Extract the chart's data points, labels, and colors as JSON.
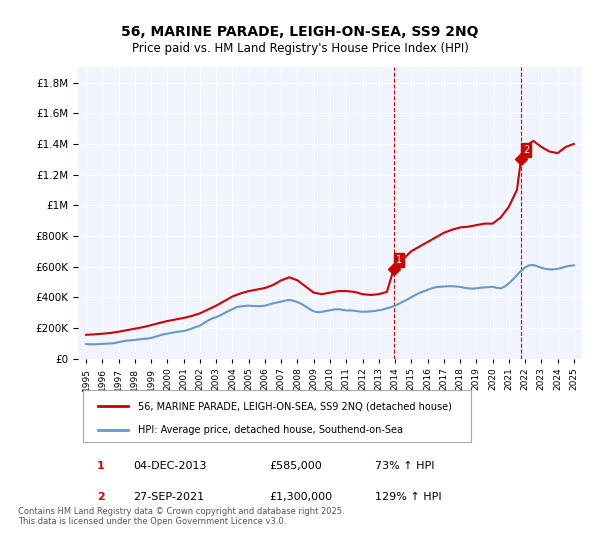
{
  "title": "56, MARINE PARADE, LEIGH-ON-SEA, SS9 2NQ",
  "subtitle": "Price paid vs. HM Land Registry's House Price Index (HPI)",
  "hpi_label": "HPI: Average price, detached house, Southend-on-Sea",
  "property_label": "56, MARINE PARADE, LEIGH-ON-SEA, SS9 2NQ (detached house)",
  "annotation1": {
    "num": "1",
    "date": "04-DEC-2013",
    "price": "£585,000",
    "pct": "73% ↑ HPI",
    "x_year": 2013.92
  },
  "annotation2": {
    "num": "2",
    "date": "27-SEP-2021",
    "price": "£1,300,000",
    "pct": "129% ↑ HPI",
    "x_year": 2021.75
  },
  "footer": "Contains HM Land Registry data © Crown copyright and database right 2025.\nThis data is licensed under the Open Government Licence v3.0.",
  "property_color": "#cc0000",
  "hpi_color": "#6699cc",
  "dashed_line_color": "#cc0000",
  "background_color": "#ffffff",
  "plot_bg_color": "#f0f4ff",
  "ylim": [
    0,
    1900000
  ],
  "xlim_start": 1994.5,
  "xlim_end": 2025.5,
  "hpi_data": {
    "years": [
      1995.0,
      1995.25,
      1995.5,
      1995.75,
      1996.0,
      1996.25,
      1996.5,
      1996.75,
      1997.0,
      1997.25,
      1997.5,
      1997.75,
      1998.0,
      1998.25,
      1998.5,
      1998.75,
      1999.0,
      1999.25,
      1999.5,
      1999.75,
      2000.0,
      2000.25,
      2000.5,
      2000.75,
      2001.0,
      2001.25,
      2001.5,
      2001.75,
      2002.0,
      2002.25,
      2002.5,
      2002.75,
      2003.0,
      2003.25,
      2003.5,
      2003.75,
      2004.0,
      2004.25,
      2004.5,
      2004.75,
      2005.0,
      2005.25,
      2005.5,
      2005.75,
      2006.0,
      2006.25,
      2006.5,
      2006.75,
      2007.0,
      2007.25,
      2007.5,
      2007.75,
      2008.0,
      2008.25,
      2008.5,
      2008.75,
      2009.0,
      2009.25,
      2009.5,
      2009.75,
      2010.0,
      2010.25,
      2010.5,
      2010.75,
      2011.0,
      2011.25,
      2011.5,
      2011.75,
      2012.0,
      2012.25,
      2012.5,
      2012.75,
      2013.0,
      2013.25,
      2013.5,
      2013.75,
      2014.0,
      2014.25,
      2014.5,
      2014.75,
      2015.0,
      2015.25,
      2015.5,
      2015.75,
      2016.0,
      2016.25,
      2016.5,
      2016.75,
      2017.0,
      2017.25,
      2017.5,
      2017.75,
      2018.0,
      2018.25,
      2018.5,
      2018.75,
      2019.0,
      2019.25,
      2019.5,
      2019.75,
      2020.0,
      2020.25,
      2020.5,
      2020.75,
      2021.0,
      2021.25,
      2021.5,
      2021.75,
      2022.0,
      2022.25,
      2022.5,
      2022.75,
      2023.0,
      2023.25,
      2023.5,
      2023.75,
      2024.0,
      2024.25,
      2024.5,
      2024.75,
      2025.0
    ],
    "values": [
      95000,
      93000,
      93000,
      94000,
      96000,
      97000,
      99000,
      101000,
      107000,
      112000,
      117000,
      119000,
      122000,
      125000,
      128000,
      130000,
      135000,
      142000,
      150000,
      158000,
      162000,
      168000,
      173000,
      176000,
      180000,
      187000,
      196000,
      206000,
      215000,
      232000,
      248000,
      262000,
      270000,
      282000,
      296000,
      310000,
      322000,
      335000,
      340000,
      343000,
      345000,
      343000,
      342000,
      342000,
      345000,
      353000,
      360000,
      366000,
      372000,
      378000,
      382000,
      377000,
      368000,
      356000,
      340000,
      322000,
      308000,
      302000,
      305000,
      310000,
      315000,
      320000,
      322000,
      318000,
      314000,
      314000,
      312000,
      308000,
      305000,
      306000,
      308000,
      310000,
      315000,
      320000,
      328000,
      335000,
      345000,
      358000,
      372000,
      385000,
      400000,
      415000,
      428000,
      438000,
      448000,
      458000,
      465000,
      468000,
      470000,
      472000,
      472000,
      470000,
      468000,
      462000,
      458000,
      456000,
      458000,
      462000,
      464000,
      466000,
      468000,
      462000,
      458000,
      470000,
      490000,
      515000,
      545000,
      572000,
      595000,
      608000,
      610000,
      602000,
      592000,
      585000,
      582000,
      582000,
      585000,
      592000,
      600000,
      605000,
      608000
    ]
  },
  "property_data": {
    "years": [
      1995.0,
      1995.5,
      1996.0,
      1996.5,
      1997.0,
      1997.5,
      1998.0,
      1998.5,
      1999.0,
      1999.5,
      2000.0,
      2000.5,
      2001.0,
      2001.5,
      2002.0,
      2002.5,
      2003.0,
      2003.5,
      2004.0,
      2004.5,
      2005.0,
      2005.5,
      2006.0,
      2006.5,
      2007.0,
      2007.5,
      2008.0,
      2008.5,
      2009.0,
      2009.5,
      2010.0,
      2010.5,
      2011.0,
      2011.5,
      2012.0,
      2012.5,
      2013.0,
      2013.5,
      2013.92,
      2014.0,
      2014.5,
      2015.0,
      2015.5,
      2016.0,
      2016.5,
      2017.0,
      2017.5,
      2018.0,
      2018.5,
      2019.0,
      2019.5,
      2020.0,
      2020.5,
      2021.0,
      2021.5,
      2021.75,
      2022.0,
      2022.5,
      2023.0,
      2023.5,
      2024.0,
      2024.5,
      2025.0
    ],
    "values": [
      155000,
      158000,
      162000,
      167000,
      175000,
      185000,
      195000,
      205000,
      218000,
      232000,
      245000,
      255000,
      265000,
      278000,
      295000,
      320000,
      345000,
      375000,
      405000,
      425000,
      440000,
      450000,
      460000,
      480000,
      510000,
      530000,
      510000,
      470000,
      430000,
      420000,
      430000,
      440000,
      440000,
      435000,
      420000,
      415000,
      420000,
      435000,
      585000,
      600000,
      650000,
      700000,
      730000,
      760000,
      790000,
      820000,
      840000,
      855000,
      860000,
      870000,
      880000,
      880000,
      920000,
      990000,
      1100000,
      1300000,
      1380000,
      1420000,
      1380000,
      1350000,
      1340000,
      1380000,
      1400000
    ]
  }
}
